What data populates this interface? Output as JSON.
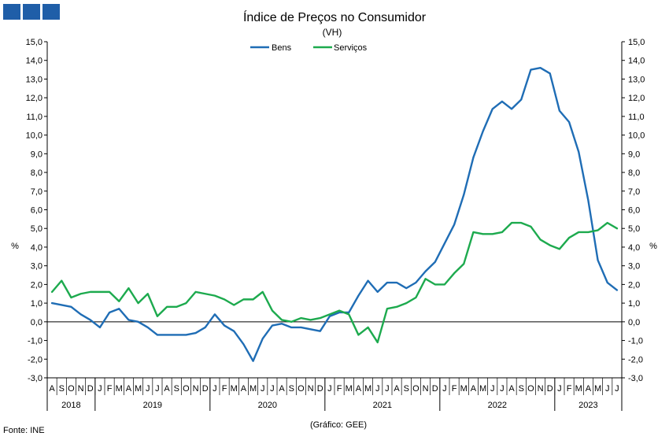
{
  "header": {
    "logo_colors": [
      "#1f5ea8",
      "#1f5ea8",
      "#1f5ea8"
    ]
  },
  "footer": {
    "source": "Fonte: INE",
    "credit": "(Gráfico: GEE)"
  },
  "chart_data": {
    "type": "line",
    "title": "Índice de Preços no Consumidor",
    "subtitle": "(VH)",
    "ylabel_left": "%",
    "ylabel_right": "%",
    "ylim": [
      -3.0,
      15.0
    ],
    "y_ticks": [
      "15,0",
      "14,0",
      "13,0",
      "12,0",
      "11,0",
      "10,0",
      "9,0",
      "8,0",
      "7,0",
      "6,0",
      "5,0",
      "4,0",
      "3,0",
      "2,0",
      "1,0",
      "0,0",
      "-1,0",
      "-2,0",
      "-3,0"
    ],
    "y_ticks_right": [
      "15,0",
      "14,0",
      "13,0",
      "12,0",
      "11,0",
      "10,0",
      "9,0",
      "8,0",
      "7,0",
      "6,0",
      "5,0",
      "4,0",
      "3,0",
      "2,0",
      "1,0",
      "0,0",
      "-1,0",
      "-2,0",
      "-3,0"
    ],
    "month_labels": [
      "A",
      "S",
      "O",
      "N",
      "D",
      "J",
      "F",
      "M",
      "A",
      "M",
      "J",
      "J",
      "A",
      "S",
      "O",
      "N",
      "D",
      "J",
      "F",
      "M",
      "A",
      "M",
      "J",
      "J",
      "A",
      "S",
      "O",
      "N",
      "D",
      "J",
      "F",
      "M",
      "A",
      "M",
      "J",
      "J",
      "A",
      "S",
      "O",
      "N",
      "D",
      "J",
      "F",
      "M",
      "A",
      "M",
      "J",
      "J",
      "A",
      "S",
      "O",
      "N",
      "D",
      "J",
      "F",
      "M",
      "A",
      "M",
      "J",
      "J"
    ],
    "years": [
      {
        "label": "2018",
        "start": 0,
        "end": 5
      },
      {
        "label": "2019",
        "start": 5,
        "end": 17
      },
      {
        "label": "2020",
        "start": 17,
        "end": 29
      },
      {
        "label": "2021",
        "start": 29,
        "end": 41
      },
      {
        "label": "2022",
        "start": 41,
        "end": 53
      },
      {
        "label": "2023",
        "start": 53,
        "end": 60
      }
    ],
    "legend_position": "top-center",
    "grid": false,
    "series": [
      {
        "name": "Bens",
        "color": "#1f6db5",
        "values": [
          1.0,
          0.9,
          0.8,
          0.4,
          0.1,
          -0.3,
          0.5,
          0.7,
          0.1,
          0.0,
          -0.3,
          -0.7,
          -0.7,
          -0.7,
          -0.7,
          -0.6,
          -0.3,
          0.4,
          -0.2,
          -0.5,
          -1.2,
          -2.1,
          -0.9,
          -0.2,
          -0.1,
          -0.3,
          -0.3,
          -0.4,
          -0.5,
          0.3,
          0.5,
          0.5,
          1.4,
          2.2,
          1.6,
          2.1,
          2.1,
          1.8,
          2.1,
          2.7,
          3.2,
          4.2,
          5.2,
          6.8,
          8.8,
          10.2,
          11.4,
          11.8,
          11.4,
          11.9,
          13.5,
          13.6,
          13.3,
          11.3,
          10.7,
          9.1,
          6.5,
          3.3,
          2.1,
          1.7
        ]
      },
      {
        "name": "Serviços",
        "color": "#1daa4e",
        "values": [
          1.6,
          2.2,
          1.3,
          1.5,
          1.6,
          1.6,
          1.6,
          1.1,
          1.8,
          1.0,
          1.5,
          0.3,
          0.8,
          0.8,
          1.0,
          1.6,
          1.5,
          1.4,
          1.2,
          0.9,
          1.2,
          1.2,
          1.6,
          0.6,
          0.1,
          0.0,
          0.2,
          0.1,
          0.2,
          0.4,
          0.6,
          0.4,
          -0.7,
          -0.3,
          -1.1,
          0.7,
          0.8,
          1.0,
          1.3,
          2.3,
          2.0,
          2.0,
          2.6,
          3.1,
          4.8,
          4.7,
          4.7,
          4.8,
          5.3,
          5.3,
          5.1,
          4.4,
          4.1,
          3.9,
          4.5,
          4.8,
          4.8,
          4.9,
          5.3,
          5.0
        ]
      }
    ]
  }
}
